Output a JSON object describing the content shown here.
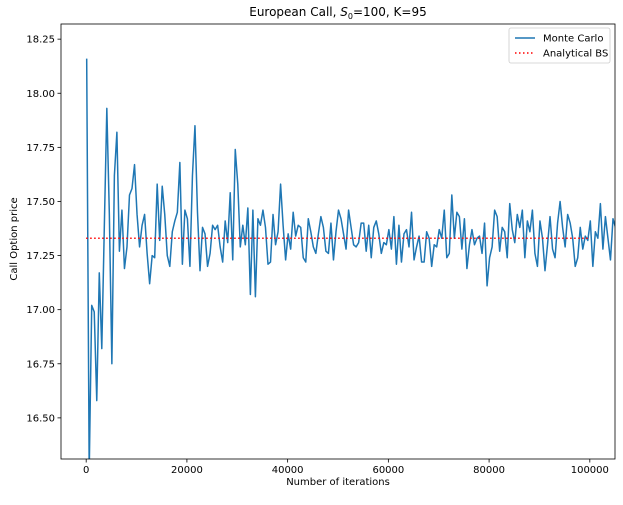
{
  "chart_data": {
    "type": "line",
    "title": {
      "prefix": "European Call, ",
      "sym": "S",
      "sub": "0",
      "suffix": "=100, K=95"
    },
    "xlabel": "Number of iterations",
    "ylabel": "Call Option price",
    "xlim": [
      -5000,
      105000
    ],
    "ylim": [
      16.31,
      18.32
    ],
    "x_ticks": [
      0,
      20000,
      40000,
      60000,
      80000,
      100000
    ],
    "x_tick_labels": [
      "0",
      "20000",
      "40000",
      "60000",
      "80000",
      "100000"
    ],
    "y_ticks": [
      16.5,
      16.75,
      17.0,
      17.25,
      17.5,
      17.75,
      18.0,
      18.25
    ],
    "y_tick_labels": [
      "16.50",
      "16.75",
      "17.00",
      "17.25",
      "17.50",
      "17.75",
      "18.00",
      "18.25"
    ],
    "legend_position": "top-right",
    "series": [
      {
        "name": "Monte Carlo",
        "style": "solid",
        "color": "#1f77b4",
        "x_start": 100,
        "x_step": 500,
        "y": [
          18.16,
          16.25,
          17.02,
          16.99,
          16.58,
          17.17,
          16.82,
          17.38,
          17.93,
          17.44,
          16.75,
          17.62,
          17.82,
          17.27,
          17.46,
          17.19,
          17.29,
          17.53,
          17.56,
          17.67,
          17.44,
          17.29,
          17.39,
          17.44,
          17.26,
          17.12,
          17.25,
          17.24,
          17.58,
          17.32,
          17.57,
          17.44,
          17.25,
          17.2,
          17.36,
          17.41,
          17.45,
          17.68,
          17.21,
          17.46,
          17.42,
          17.2,
          17.62,
          17.85,
          17.45,
          17.18,
          17.38,
          17.35,
          17.2,
          17.26,
          17.39,
          17.37,
          17.39,
          17.29,
          17.22,
          17.41,
          17.31,
          17.54,
          17.23,
          17.74,
          17.58,
          17.29,
          17.39,
          17.3,
          17.47,
          17.07,
          17.46,
          17.06,
          17.42,
          17.39,
          17.46,
          17.38,
          17.21,
          17.22,
          17.44,
          17.3,
          17.36,
          17.58,
          17.39,
          17.23,
          17.35,
          17.28,
          17.45,
          17.34,
          17.39,
          17.38,
          17.24,
          17.22,
          17.42,
          17.36,
          17.29,
          17.26,
          17.35,
          17.43,
          17.38,
          17.27,
          17.26,
          17.4,
          17.23,
          17.36,
          17.46,
          17.42,
          17.35,
          17.28,
          17.46,
          17.38,
          17.3,
          17.29,
          17.31,
          17.4,
          17.4,
          17.27,
          17.39,
          17.24,
          17.38,
          17.41,
          17.35,
          17.26,
          17.31,
          17.3,
          17.37,
          17.28,
          17.43,
          17.21,
          17.39,
          17.22,
          17.35,
          17.37,
          17.29,
          17.45,
          17.23,
          17.29,
          17.34,
          17.22,
          17.22,
          17.36,
          17.33,
          17.2,
          17.3,
          17.29,
          17.37,
          17.33,
          17.46,
          17.24,
          17.26,
          17.53,
          17.33,
          17.45,
          17.43,
          17.28,
          17.42,
          17.19,
          17.3,
          17.37,
          17.3,
          17.33,
          17.34,
          17.26,
          17.4,
          17.11,
          17.24,
          17.29,
          17.46,
          17.43,
          17.27,
          17.38,
          17.36,
          17.24,
          17.49,
          17.37,
          17.31,
          17.44,
          17.38,
          17.46,
          17.24,
          17.41,
          17.36,
          17.46,
          17.26,
          17.2,
          17.41,
          17.33,
          17.18,
          17.3,
          17.43,
          17.28,
          17.24,
          17.4,
          17.5,
          17.38,
          17.29,
          17.44,
          17.4,
          17.33,
          17.2,
          17.24,
          17.38,
          17.28,
          17.34,
          17.32,
          17.41,
          17.2,
          17.36,
          17.33,
          17.49,
          17.28,
          17.43,
          17.33,
          17.23,
          17.42,
          17.38,
          17.32,
          17.48,
          17.39,
          17.42,
          17.38,
          17.29,
          17.53
        ]
      },
      {
        "name": "Analytical BS",
        "style": "dotted",
        "color": "#ff0000",
        "x": [
          0,
          100000
        ],
        "y": [
          17.33,
          17.33
        ]
      }
    ]
  }
}
